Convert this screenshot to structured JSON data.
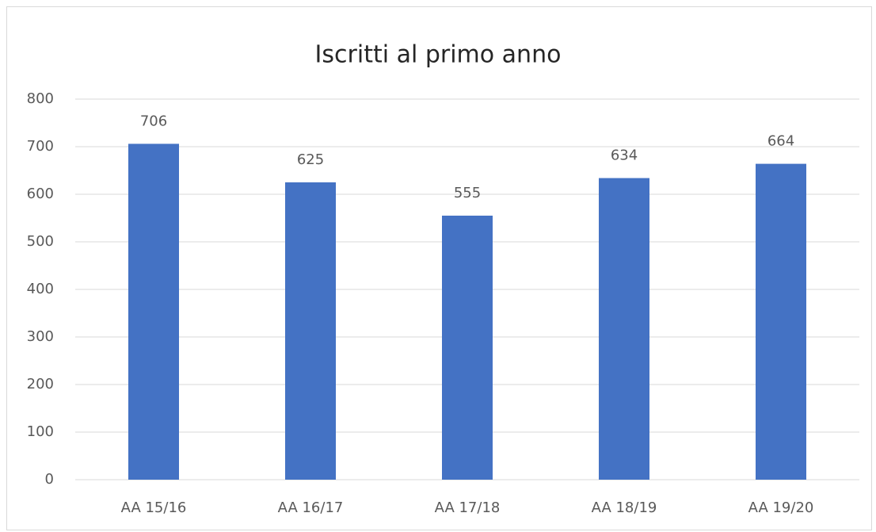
{
  "chart_data": {
    "type": "bar",
    "title": "Iscritti al primo anno",
    "categories": [
      "AA 15/16",
      "AA 16/17",
      "AA 17/18",
      "AA 18/19",
      "AA 19/20"
    ],
    "values": [
      706,
      625,
      555,
      634,
      664
    ],
    "color": "#4472c4",
    "ylim": [
      0,
      800
    ],
    "yticks": [
      0,
      100,
      200,
      300,
      400,
      500,
      600,
      700,
      800
    ],
    "grid": true,
    "data_labels": true
  }
}
